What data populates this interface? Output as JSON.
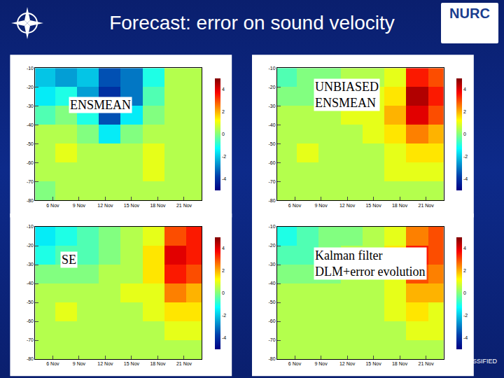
{
  "title": "Forecast: error on sound velocity",
  "logo_text": "NURC",
  "footer": "ASSIFIED",
  "chart_data": [
    {
      "type": "heatmap",
      "title": "ENSMEAN",
      "x": [
        5,
        7.5,
        10,
        12.5,
        15,
        17.5,
        20,
        22.5
      ],
      "y": [
        -15,
        -25,
        -35,
        -45,
        -55,
        -65,
        -75
      ],
      "z": [
        [
          -2,
          -2.5,
          -2,
          -3.5,
          -3,
          -1,
          0.5,
          0.5
        ],
        [
          -1.5,
          -1,
          -2.5,
          -4,
          -3,
          -0.5,
          0.5,
          0.5
        ],
        [
          -0.5,
          0,
          -1,
          -3.5,
          -1.5,
          0,
          0.5,
          0.5
        ],
        [
          0.5,
          0.5,
          0,
          -1.5,
          0,
          0.5,
          0.5,
          0.5
        ],
        [
          0.5,
          1,
          0.5,
          0.5,
          0.5,
          1,
          0.5,
          0.5
        ],
        [
          0.5,
          0.5,
          0.5,
          0.5,
          0.5,
          1,
          0.5,
          0.5
        ],
        [
          0,
          0.5,
          0.5,
          0.5,
          0.5,
          0.5,
          0.5,
          0.5
        ]
      ],
      "xlim": [
        4,
        23
      ],
      "xticks": [
        {
          "value": 6,
          "label": "6 Nov"
        },
        {
          "value": 9,
          "label": "9 Nov"
        },
        {
          "value": 12,
          "label": "12 Nov"
        },
        {
          "value": 15,
          "label": "15 Nov"
        },
        {
          "value": 18,
          "label": "18 Nov"
        },
        {
          "value": 21,
          "label": "21 Nov"
        }
      ],
      "ylim": [
        -80,
        -10
      ],
      "yticks": [
        -10,
        -20,
        -30,
        -40,
        -50,
        -60,
        -70,
        -80
      ],
      "zlim": [
        -5,
        5
      ],
      "zticks": [
        -4,
        -2,
        0,
        2,
        4
      ]
    },
    {
      "type": "heatmap",
      "title": "UNBIASED\nENSMEAN",
      "x": [
        5,
        7.5,
        10,
        12.5,
        15,
        17.5,
        20,
        22.5
      ],
      "y": [
        -15,
        -25,
        -35,
        -45,
        -55,
        -65,
        -75
      ],
      "z": [
        [
          -0.5,
          0,
          0,
          0.5,
          0.5,
          1,
          3.5,
          3
        ],
        [
          0,
          0,
          0.5,
          0.5,
          1,
          1.5,
          4.5,
          3.5
        ],
        [
          0.5,
          0.5,
          0.5,
          1,
          1,
          2,
          4,
          3
        ],
        [
          0.5,
          0.5,
          0.5,
          0.5,
          1,
          1.5,
          2.5,
          2
        ],
        [
          0.5,
          1,
          0.5,
          0.5,
          0.5,
          1,
          1.5,
          1.5
        ],
        [
          0.5,
          0.5,
          0.5,
          0.5,
          0.5,
          1,
          1,
          1
        ],
        [
          0.5,
          0.5,
          0.5,
          0.5,
          0.5,
          0.5,
          0.5,
          0.5
        ]
      ],
      "xlim": [
        4,
        23
      ],
      "xticks": [
        {
          "value": 6,
          "label": "6 Nov"
        },
        {
          "value": 9,
          "label": "9 Nov"
        },
        {
          "value": 12,
          "label": "12 Nov"
        },
        {
          "value": 15,
          "label": "15 Nov"
        },
        {
          "value": 18,
          "label": "18 Nov"
        },
        {
          "value": 21,
          "label": "21 Nov"
        }
      ],
      "ylim": [
        -80,
        -10
      ],
      "yticks": [
        -10,
        -20,
        -30,
        -40,
        -50,
        -60,
        -70,
        -80
      ],
      "zlim": [
        -5,
        5
      ],
      "zticks": [
        -4,
        -2,
        0,
        2,
        4
      ]
    },
    {
      "type": "heatmap",
      "title": "SE",
      "x": [
        5,
        7.5,
        10,
        12.5,
        15,
        17.5,
        20,
        22.5
      ],
      "y": [
        -15,
        -25,
        -35,
        -45,
        -55,
        -65,
        -75
      ],
      "z": [
        [
          -1.5,
          -1,
          -0.5,
          0,
          0.5,
          1,
          3,
          3.5
        ],
        [
          -1,
          -0.5,
          -0.5,
          0,
          0.5,
          1.5,
          4,
          3.5
        ],
        [
          0,
          0,
          0,
          0.5,
          0.5,
          1.5,
          3.5,
          3
        ],
        [
          0.5,
          0.5,
          0.5,
          0.5,
          1,
          1,
          2.5,
          2
        ],
        [
          0.5,
          1,
          0.5,
          0.5,
          0.5,
          1,
          1.5,
          1.5
        ],
        [
          0.5,
          0.5,
          0.5,
          0.5,
          0.5,
          0.5,
          1,
          1
        ],
        [
          0.5,
          0.5,
          0.5,
          0.5,
          0.5,
          0.5,
          0.5,
          0.5
        ]
      ],
      "xlim": [
        4,
        23
      ],
      "xticks": [
        {
          "value": 6,
          "label": "6 Nov"
        },
        {
          "value": 9,
          "label": "9 Nov"
        },
        {
          "value": 12,
          "label": "12 Nov"
        },
        {
          "value": 15,
          "label": "15 Nov"
        },
        {
          "value": 18,
          "label": "18 Nov"
        },
        {
          "value": 21,
          "label": "21 Nov"
        }
      ],
      "ylim": [
        -80,
        -10
      ],
      "yticks": [
        -10,
        -20,
        -30,
        -40,
        -50,
        -60,
        -70,
        -80
      ],
      "zlim": [
        -5,
        5
      ],
      "zticks": [
        -4,
        -2,
        0,
        2,
        4
      ]
    },
    {
      "type": "heatmap",
      "title": "Kalman filter\nDLM+error evolution",
      "x": [
        5,
        7.5,
        10,
        12.5,
        15,
        17.5,
        20,
        22.5
      ],
      "y": [
        -15,
        -25,
        -35,
        -45,
        -55,
        -65,
        -75
      ],
      "z": [
        [
          -1,
          -0.5,
          0,
          0,
          0.5,
          1,
          2.5,
          3
        ],
        [
          -0.5,
          -0.5,
          0,
          0.5,
          0.5,
          1.5,
          3.5,
          3
        ],
        [
          0,
          0,
          0,
          0.5,
          0.5,
          1,
          3,
          2.5
        ],
        [
          0.5,
          0.5,
          0.5,
          0.5,
          0.5,
          1,
          2,
          2
        ],
        [
          0.5,
          0.5,
          0.5,
          0.5,
          0.5,
          1,
          1.5,
          1
        ],
        [
          0.5,
          0.5,
          0.5,
          0.5,
          0.5,
          0.5,
          1,
          1
        ],
        [
          0.5,
          0.5,
          0.5,
          0.5,
          0.5,
          0.5,
          0.5,
          0.5
        ]
      ],
      "xlim": [
        4,
        23
      ],
      "xticks": [
        {
          "value": 6,
          "label": "6 Nov"
        },
        {
          "value": 9,
          "label": "9 Nov"
        },
        {
          "value": 12,
          "label": "12 Nov"
        },
        {
          "value": 15,
          "label": "15 Nov"
        },
        {
          "value": 18,
          "label": "18 Nov"
        },
        {
          "value": 21,
          "label": "21 Nov"
        }
      ],
      "ylim": [
        -80,
        -10
      ],
      "yticks": [
        -10,
        -20,
        -30,
        -40,
        -50,
        -60,
        -70,
        -80
      ],
      "zlim": [
        -5,
        5
      ],
      "zticks": [
        -4,
        -2,
        0,
        2,
        4
      ]
    }
  ]
}
